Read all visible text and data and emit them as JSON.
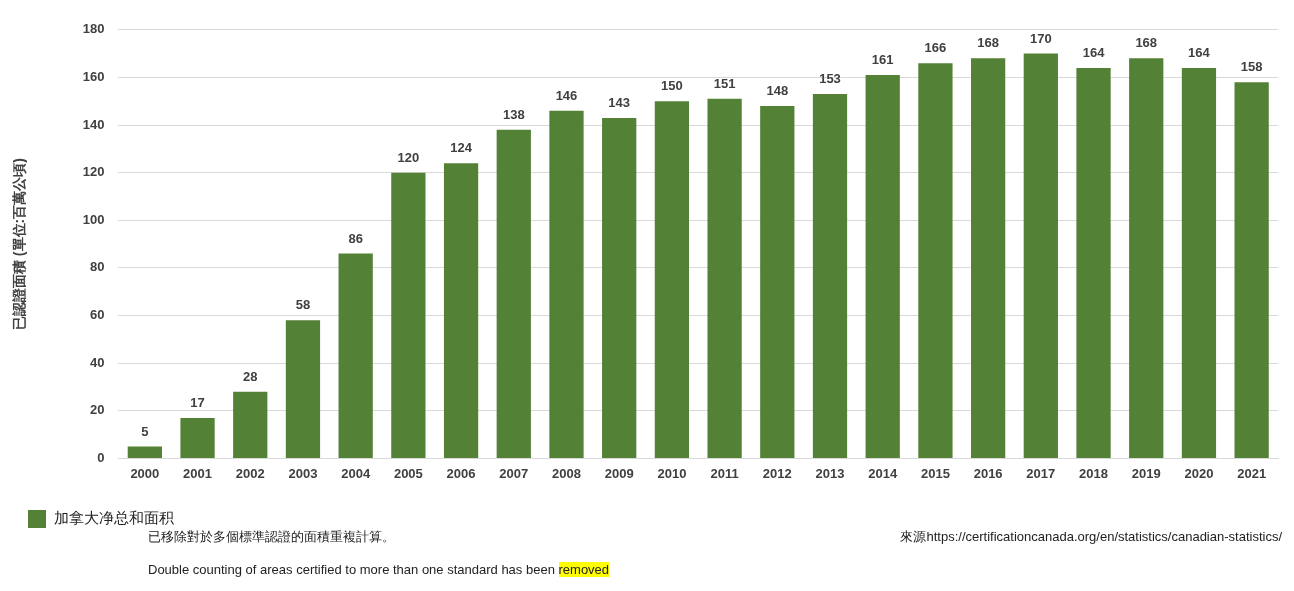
{
  "chart_data": {
    "type": "bar",
    "ylabel": "已認證面積 (單位:百萬公頃)",
    "categories": [
      "2000",
      "2001",
      "2002",
      "2003",
      "2004",
      "2005",
      "2006",
      "2007",
      "2008",
      "2009",
      "2010",
      "2011",
      "2012",
      "2013",
      "2014",
      "2015",
      "2016",
      "2017",
      "2018",
      "2019",
      "2020",
      "2021"
    ],
    "series": [
      {
        "name": "加拿大净总和面积",
        "color": "#538135",
        "values": [
          5,
          17,
          28,
          58,
          86,
          120,
          124,
          138,
          146,
          143,
          150,
          151,
          148,
          153,
          161,
          166,
          168,
          170,
          164,
          168,
          164,
          158
        ]
      }
    ],
    "ylim": [
      0,
      180
    ],
    "yticks": [
      0,
      20,
      40,
      60,
      80,
      100,
      120,
      140,
      160,
      180
    ],
    "grid": "y",
    "legend": "bottom left",
    "data_labels": true,
    "annotations": [
      "已移除對於多個標準認證的面積重複計算。",
      "來源https://certificationcanada.org/en/statistics/canadian-statistics/",
      "Double counting of areas certified to more than one standard has been removed"
    ]
  }
}
